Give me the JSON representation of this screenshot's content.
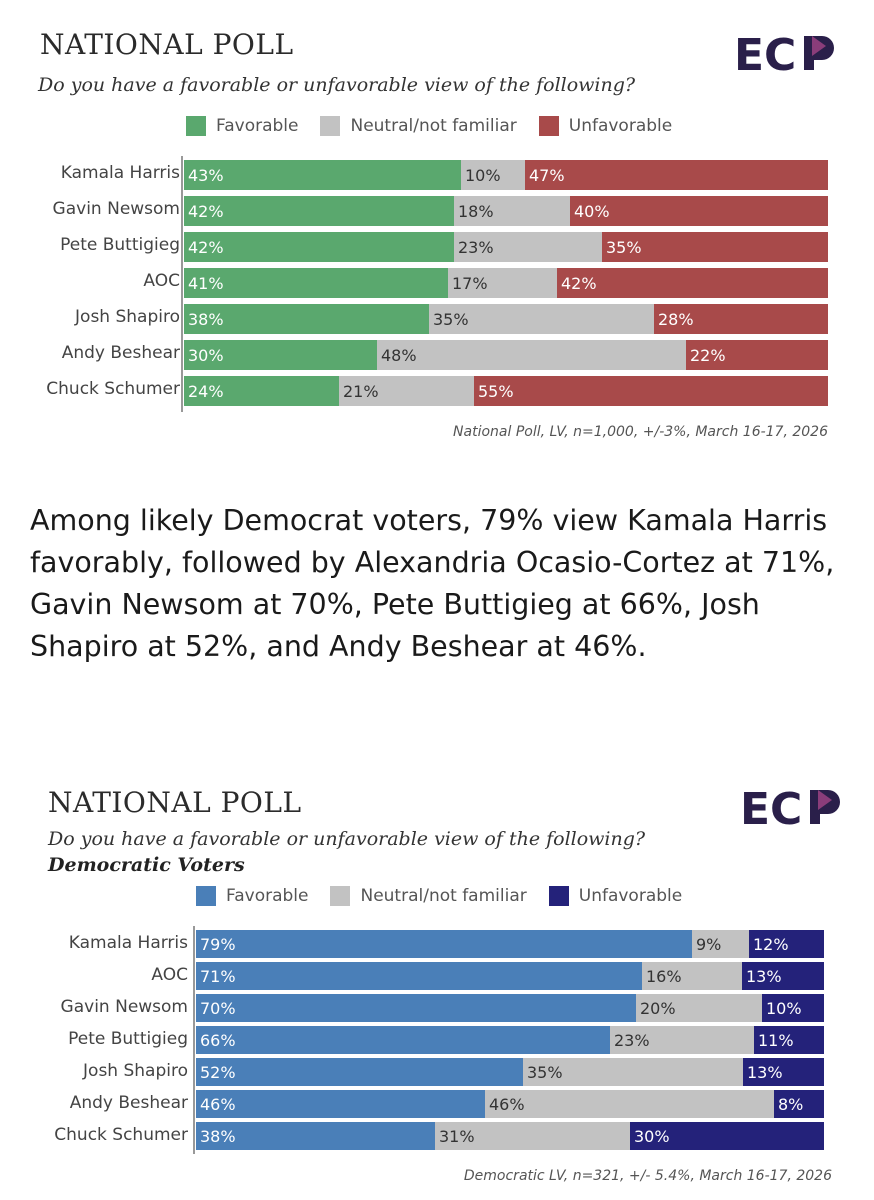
{
  "summary_text": "Among likely Democrat voters, 79% view Kamala Harris favorably, followed by Alexandria Ocasio-Cortez at 71%, Gavin Newsom at 70%, Pete Buttigieg at 66%, Josh Shapiro at 52%, and Andy Beshear at 46%.",
  "chart_data": [
    {
      "type": "bar",
      "orientation": "horizontal-stacked-100",
      "title": "NATIONAL POLL",
      "subtitle": "Do you have a favorable or unfavorable view of the following?",
      "group_label": "",
      "logo_text": "ECP",
      "categories": [
        "Kamala Harris",
        "Gavin Newsom",
        "Pete Buttigieg",
        "AOC",
        "Josh Shapiro",
        "Andy Beshear",
        "Chuck Schumer"
      ],
      "series": [
        {
          "name": "Favorable",
          "key": "fav",
          "color": "#5aa86e",
          "values": [
            43,
            42,
            42,
            41,
            38,
            30,
            24
          ]
        },
        {
          "name": "Neutral/not familiar",
          "key": "neu",
          "color": "#c2c2c2",
          "values": [
            10,
            18,
            23,
            17,
            35,
            48,
            21
          ]
        },
        {
          "name": "Unfavorable",
          "key": "unf",
          "color": "#a84a4a",
          "values": [
            47,
            40,
            35,
            42,
            28,
            22,
            55
          ]
        }
      ],
      "legend_position": "top",
      "footnote": "National Poll, LV, n=1,000, +/-3%, March 16-17, 2026"
    },
    {
      "type": "bar",
      "orientation": "horizontal-stacked-100",
      "title": "NATIONAL POLL",
      "subtitle": "Do you have a favorable or unfavorable view of the following?",
      "group_label": "Democratic Voters",
      "logo_text": "ECP",
      "categories": [
        "Kamala Harris",
        "AOC",
        "Gavin Newsom",
        "Pete Buttigieg",
        "Josh Shapiro",
        "Andy Beshear",
        "Chuck Schumer"
      ],
      "series": [
        {
          "name": "Favorable",
          "key": "fav",
          "color": "#4a7fb8",
          "values": [
            79,
            71,
            70,
            66,
            52,
            46,
            38
          ]
        },
        {
          "name": "Neutral/not familiar",
          "key": "neu",
          "color": "#c2c2c2",
          "values": [
            9,
            16,
            20,
            23,
            35,
            46,
            31
          ]
        },
        {
          "name": "Unfavorable",
          "key": "unf",
          "color": "#24227a",
          "values": [
            12,
            13,
            10,
            11,
            13,
            8,
            30
          ]
        }
      ],
      "legend_position": "top",
      "footnote": "Democratic LV, n=321, +/- 5.4%, March 16-17, 2026"
    }
  ]
}
